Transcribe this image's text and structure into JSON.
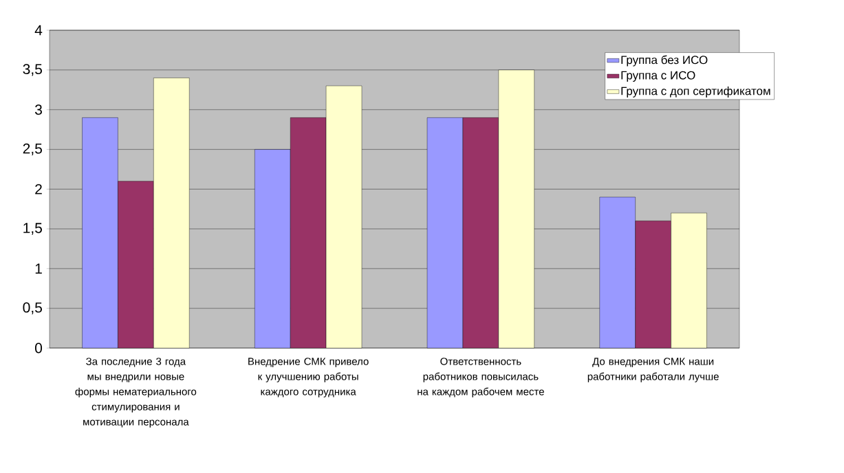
{
  "chart_data": {
    "type": "bar",
    "categories": [
      "За последние 3 года мы внедрили новые формы нематериального стимулирования и мотивации персонала",
      "Внедрение СМК привело к улучшению работы каждого сотрудника",
      "Ответственность работников повысилась на каждом рабочем месте",
      "До внедрения СМК наши работники работали лучше"
    ],
    "series": [
      {
        "name": "Группа без ИСО",
        "color": "#9999ff",
        "values": [
          2.9,
          2.5,
          2.9,
          1.9
        ]
      },
      {
        "name": "Группа с ИСО",
        "color": "#993366",
        "values": [
          2.1,
          2.9,
          2.9,
          1.6
        ]
      },
      {
        "name": "Группа с доп сертификатом",
        "color": "#ffffcc",
        "values": [
          3.4,
          3.3,
          3.5,
          1.7
        ]
      }
    ],
    "ylim": [
      0,
      4
    ],
    "yticks": [
      0,
      {
        "value": 0.5,
        "label": "0,5"
      },
      1,
      {
        "value": 1.5,
        "label": "1,5"
      },
      2,
      {
        "value": 2.5,
        "label": "2,5"
      },
      3,
      {
        "value": 3.5,
        "label": "3,5"
      },
      4
    ],
    "grid": "y",
    "legend": "top right"
  }
}
